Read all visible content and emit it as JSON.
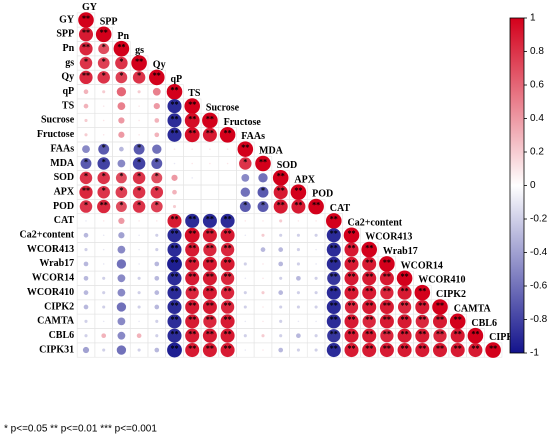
{
  "chart_data": {
    "type": "correlation",
    "variables": [
      "GY",
      "SPP",
      "Pn",
      "gs",
      "Qy",
      "qP",
      "TS",
      "Sucrose",
      "Fructose",
      "FAAs",
      "MDA",
      "SOD",
      "APX",
      "POD",
      "CAT",
      "Ca2+content",
      "WCOR413",
      "Wrab17",
      "WCOR14",
      "WCOR410",
      "CIPK2",
      "CAMTA",
      "CBL6",
      "CIPK31"
    ],
    "values": [
      [
        1
      ],
      [
        0.9,
        1
      ],
      [
        0.85,
        0.7,
        1
      ],
      [
        0.8,
        0.75,
        0.8,
        1
      ],
      [
        0.85,
        0.8,
        0.75,
        0.8,
        1
      ],
      [
        0.3,
        0.2,
        0.6,
        0.2,
        0.5,
        1
      ],
      [
        0.3,
        0.1,
        0.5,
        0.1,
        0.4,
        -0.9,
        1
      ],
      [
        0.2,
        0.1,
        0.4,
        0.1,
        0.3,
        -0.9,
        0.95,
        1
      ],
      [
        0.2,
        0.1,
        0.4,
        0.1,
        0.3,
        -0.9,
        0.95,
        0.9,
        1
      ],
      [
        -0.5,
        -0.7,
        -0.3,
        -0.7,
        -0.6,
        0.1,
        0.1,
        0.1,
        0.1,
        1
      ],
      [
        -0.7,
        -0.8,
        -0.5,
        -0.8,
        -0.7,
        -0.1,
        0.1,
        0.1,
        0.1,
        0.8,
        1
      ],
      [
        0.8,
        0.8,
        0.7,
        0.8,
        0.7,
        0.4,
        -0.1,
        0,
        0,
        -0.5,
        -0.6,
        1
      ],
      [
        0.85,
        0.8,
        0.75,
        0.8,
        0.8,
        0.3,
        0,
        0,
        0,
        -0.6,
        -0.7,
        0.9,
        1
      ],
      [
        0.8,
        0.85,
        0.7,
        0.8,
        0.75,
        0.2,
        0,
        0,
        0,
        -0.7,
        -0.7,
        0.9,
        0.9,
        1
      ],
      [
        -0.1,
        0.1,
        0.4,
        0.1,
        0.1,
        0.9,
        -0.9,
        -0.9,
        -0.9,
        0.1,
        0.1,
        0.2,
        0.1,
        0.1,
        1
      ],
      [
        -0.3,
        -0.1,
        -0.4,
        -0.1,
        -0.2,
        -0.9,
        0.95,
        0.9,
        0.9,
        -0.1,
        0.2,
        -0.2,
        -0.2,
        -0.2,
        -0.9,
        1
      ],
      [
        -0.2,
        -0.1,
        -0.5,
        -0.1,
        -0.2,
        -0.9,
        0.9,
        0.85,
        0.85,
        0,
        -0.3,
        -0.3,
        -0.2,
        -0.1,
        -0.9,
        0.9,
        1
      ],
      [
        -0.3,
        -0.1,
        -0.6,
        -0.1,
        -0.3,
        -0.95,
        0.9,
        0.9,
        0.9,
        -0.2,
        0.1,
        -0.3,
        -0.2,
        -0.1,
        -0.9,
        0.9,
        0.9,
        1
      ],
      [
        -0.3,
        -0.2,
        -0.5,
        -0.2,
        -0.3,
        -0.9,
        0.9,
        0.9,
        0.85,
        -0.1,
        0.1,
        -0.2,
        -0.3,
        -0.2,
        -0.85,
        0.9,
        0.9,
        0.9,
        1
      ],
      [
        -0.3,
        -0.2,
        -0.5,
        -0.2,
        -0.3,
        -0.9,
        0.85,
        0.9,
        0.85,
        -0.2,
        0.2,
        -0.3,
        -0.2,
        -0.2,
        -0.9,
        0.9,
        0.9,
        0.85,
        0.9,
        1
      ],
      [
        -0.3,
        -0.2,
        -0.6,
        -0.2,
        -0.3,
        -0.9,
        0.9,
        0.9,
        0.85,
        -0.2,
        0.1,
        -0.2,
        -0.2,
        -0.2,
        -0.9,
        0.85,
        0.9,
        0.9,
        0.85,
        0.9,
        1
      ],
      [
        -0.2,
        -0.1,
        -0.5,
        -0.1,
        -0.2,
        -0.9,
        0.9,
        0.85,
        0.9,
        -0.1,
        0.1,
        -0.2,
        -0.1,
        -0.1,
        -0.9,
        0.9,
        0.85,
        0.9,
        0.9,
        0.85,
        0.9,
        1
      ],
      [
        -0.2,
        0.3,
        -0.5,
        0.3,
        -0.2,
        -0.9,
        0.9,
        0.9,
        0.9,
        -0.2,
        0.2,
        -0.2,
        -0.3,
        -0.2,
        -0.85,
        0.9,
        0.9,
        0.85,
        0.9,
        0.9,
        0.85,
        0.9,
        1
      ],
      [
        -0.4,
        -0.2,
        -0.6,
        -0.2,
        -0.3,
        -0.95,
        0.9,
        0.9,
        0.9,
        -0.1,
        0.1,
        -0.3,
        -0.2,
        -0.2,
        -0.9,
        0.9,
        0.9,
        0.9,
        0.9,
        0.9,
        0.9,
        0.9,
        0.9,
        1
      ]
    ],
    "stars": [
      [
        "**"
      ],
      [
        "**",
        "**"
      ],
      [
        "**",
        "*",
        "**"
      ],
      [
        "*",
        "*",
        "*",
        "**"
      ],
      [
        "**",
        "*",
        "*",
        "*",
        "**"
      ],
      [
        null,
        null,
        null,
        null,
        null,
        "**"
      ],
      [
        null,
        null,
        null,
        null,
        null,
        "**",
        "**"
      ],
      [
        null,
        null,
        null,
        null,
        null,
        "**",
        "**",
        "**"
      ],
      [
        null,
        null,
        null,
        null,
        null,
        "**",
        "**",
        "**",
        "**"
      ],
      [
        null,
        "*",
        null,
        "*",
        null,
        null,
        null,
        null,
        null,
        "**"
      ],
      [
        "*",
        "*",
        null,
        "*",
        "*",
        null,
        null,
        null,
        null,
        "*",
        "**"
      ],
      [
        "*",
        "*",
        "*",
        "*",
        "*",
        null,
        null,
        null,
        null,
        null,
        null,
        "**"
      ],
      [
        "**",
        "*",
        "*",
        "*",
        "*",
        null,
        null,
        null,
        null,
        null,
        "*",
        "**",
        "**"
      ],
      [
        "*",
        "**",
        "*",
        "*",
        "*",
        null,
        null,
        null,
        null,
        "*",
        "*",
        "**",
        "**",
        "**"
      ],
      [
        null,
        null,
        null,
        null,
        null,
        "**",
        "**",
        "**",
        "**",
        null,
        null,
        null,
        null,
        null,
        "**"
      ],
      [
        null,
        null,
        null,
        null,
        null,
        "**",
        "**",
        "**",
        "**",
        null,
        null,
        null,
        null,
        null,
        "**",
        "**"
      ],
      [
        null,
        null,
        null,
        null,
        null,
        "**",
        "**",
        "**",
        "**",
        null,
        null,
        null,
        null,
        null,
        "**",
        "**",
        "**"
      ],
      [
        null,
        null,
        null,
        null,
        null,
        "**",
        "**",
        "**",
        "**",
        null,
        null,
        null,
        null,
        null,
        "**",
        "**",
        "**",
        "**"
      ],
      [
        null,
        null,
        null,
        null,
        null,
        "**",
        "**",
        "**",
        "**",
        null,
        null,
        null,
        null,
        null,
        "**",
        "**",
        "**",
        "**",
        "**"
      ],
      [
        null,
        null,
        null,
        null,
        null,
        "**",
        "**",
        "**",
        "**",
        null,
        null,
        null,
        null,
        null,
        "**",
        "**",
        "**",
        "**",
        "**",
        "**"
      ],
      [
        null,
        null,
        null,
        null,
        null,
        "**",
        "**",
        "**",
        "**",
        null,
        null,
        null,
        null,
        null,
        "**",
        "**",
        "**",
        "**",
        "**",
        "**",
        "**"
      ],
      [
        null,
        null,
        null,
        null,
        null,
        "**",
        "**",
        "**",
        "**",
        null,
        null,
        null,
        null,
        null,
        "**",
        "**",
        "**",
        "**",
        "**",
        "**",
        "**",
        "**"
      ],
      [
        null,
        null,
        null,
        null,
        null,
        "**",
        "**",
        "**",
        "**",
        null,
        null,
        null,
        null,
        null,
        "**",
        "**",
        "**",
        "**",
        "**",
        "**",
        "**",
        "**",
        "**"
      ],
      [
        null,
        null,
        null,
        null,
        null,
        "**",
        "**",
        "**",
        "**",
        null,
        null,
        null,
        null,
        null,
        "**",
        "**",
        "**",
        "**",
        "**",
        "**",
        "**",
        "**",
        "**",
        "**"
      ]
    ],
    "clim": [
      -1,
      1
    ],
    "colorbar_ticks": [
      -1,
      -0.8,
      -0.6,
      -0.4,
      -0.2,
      0,
      0.2,
      0.4,
      0.6,
      0.8,
      1
    ],
    "colormap": [
      "#13138c",
      "#ffffff",
      "#d3001b"
    ],
    "note": "* p<=0.05  ** p<=0.01  *** p<=0.001"
  }
}
